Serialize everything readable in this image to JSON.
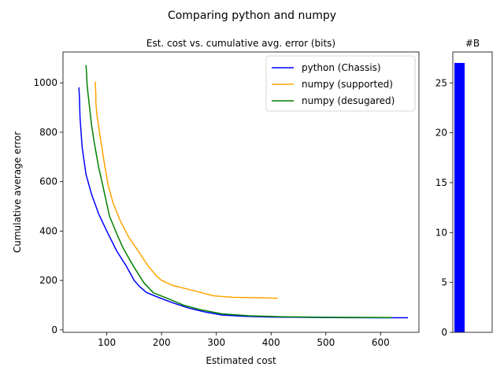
{
  "figure": {
    "suptitle": "Comparing python and numpy"
  },
  "chart_data": [
    {
      "type": "line",
      "title": "Est. cost vs. cumulative avg. error (bits)",
      "xlabel": "Estimated cost",
      "ylabel": "Cumulative average error",
      "xlim": [
        20,
        670
      ],
      "ylim": [
        -10,
        1125
      ],
      "xticks": [
        100,
        200,
        300,
        400,
        500,
        600
      ],
      "yticks": [
        0,
        200,
        400,
        600,
        800,
        1000
      ],
      "grid": false,
      "legend": "top-right",
      "series": [
        {
          "name": "python (Chassis)",
          "color": "#0000ff",
          "points": [
            [
              49,
              982
            ],
            [
              50,
              940
            ],
            [
              51,
              860
            ],
            [
              55,
              740
            ],
            [
              62,
              630
            ],
            [
              72,
              550
            ],
            [
              85,
              470
            ],
            [
              100,
              400
            ],
            [
              118,
              320
            ],
            [
              135,
              260
            ],
            [
              150,
              200
            ],
            [
              160,
              175
            ],
            [
              172,
              152
            ],
            [
              190,
              135
            ],
            [
              220,
              110
            ],
            [
              250,
              88
            ],
            [
              280,
              72
            ],
            [
              310,
              60
            ],
            [
              350,
              55
            ],
            [
              400,
              52
            ],
            [
              500,
              50
            ],
            [
              600,
              49
            ],
            [
              650,
              49
            ]
          ]
        },
        {
          "name": "numpy (supported)",
          "color": "#ffa500",
          "points": [
            [
              79,
              1005
            ],
            [
              80,
              950
            ],
            [
              80,
              920
            ],
            [
              82,
              870
            ],
            [
              88,
              780
            ],
            [
              95,
              680
            ],
            [
              103,
              580
            ],
            [
              112,
              510
            ],
            [
              125,
              440
            ],
            [
              140,
              375
            ],
            [
              160,
              310
            ],
            [
              175,
              260
            ],
            [
              190,
              220
            ],
            [
              200,
              200
            ],
            [
              220,
              180
            ],
            [
              260,
              158
            ],
            [
              295,
              138
            ],
            [
              330,
              132
            ],
            [
              380,
              130
            ],
            [
              412,
              128
            ]
          ]
        },
        {
          "name": "numpy (desugared)",
          "color": "#008000",
          "points": [
            [
              62,
              1072
            ],
            [
              63,
              1040
            ],
            [
              64,
              990
            ],
            [
              67,
              930
            ],
            [
              72,
              830
            ],
            [
              77,
              760
            ],
            [
              85,
              660
            ],
            [
              95,
              560
            ],
            [
              105,
              460
            ],
            [
              118,
              390
            ],
            [
              130,
              330
            ],
            [
              148,
              260
            ],
            [
              168,
              190
            ],
            [
              185,
              150
            ],
            [
              210,
              128
            ],
            [
              240,
              100
            ],
            [
              270,
              82
            ],
            [
              310,
              65
            ],
            [
              360,
              57
            ],
            [
              420,
              53
            ],
            [
              500,
              51
            ],
            [
              620,
              50
            ]
          ]
        }
      ]
    },
    {
      "type": "bar",
      "title": "#B",
      "categories": [
        ""
      ],
      "values": [
        27
      ],
      "color": "#0000ff",
      "ylim": [
        0,
        28.1
      ],
      "yticks": [
        0,
        5,
        10,
        15,
        20,
        25
      ],
      "xticks": []
    }
  ]
}
